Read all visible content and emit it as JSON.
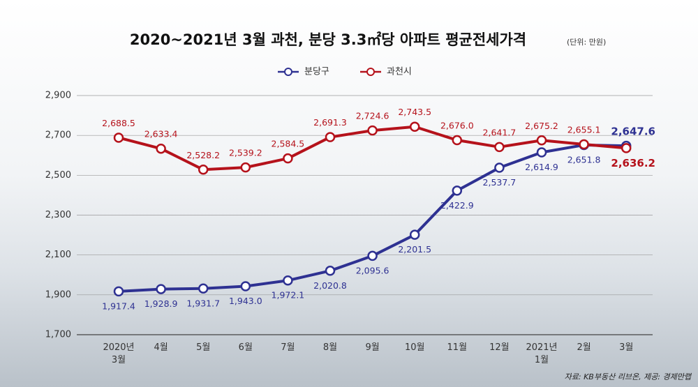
{
  "chart_data": {
    "type": "line",
    "title": "2020~2021년 3월  과천, 분당 3.3㎡당 아파트 평균전세가격",
    "unit": "(단위: 만원)",
    "source": "자료: KB부동산 리브온, 제공: 경제만랩",
    "categories": [
      "2020년\n3월",
      "4월",
      "5월",
      "6월",
      "7월",
      "8월",
      "9월",
      "10월",
      "11월",
      "12월",
      "2021년\n1월",
      "2월",
      "3월"
    ],
    "series": [
      {
        "name": "분당구",
        "color": "#2e3192",
        "values": [
          1917.4,
          1928.9,
          1931.7,
          1943.0,
          1972.1,
          2020.8,
          2095.6,
          2201.5,
          2422.9,
          2537.7,
          2614.9,
          2651.8,
          2647.6
        ],
        "value_labels": [
          "1,917.4",
          "1,928.9",
          "1,931.7",
          "1,943.0",
          "1,972.1",
          "2,020.8",
          "2,095.6",
          "2,201.5",
          "2,422.9",
          "2,537.7",
          "2,614.9",
          "2,651.8",
          "2,647.6"
        ]
      },
      {
        "name": "과천시",
        "color": "#b5121b",
        "values": [
          2688.5,
          2633.4,
          2528.2,
          2539.2,
          2584.5,
          2691.3,
          2724.6,
          2743.5,
          2676.0,
          2641.7,
          2675.2,
          2655.1,
          2636.2
        ],
        "value_labels": [
          "2,688.5",
          "2,633.4",
          "2,528.2",
          "2,539.2",
          "2,584.5",
          "2,691.3",
          "2,724.6",
          "2,743.5",
          "2,676.0",
          "2,641.7",
          "2,675.2",
          "2,655.1",
          "2,636.2"
        ]
      }
    ],
    "ylim": [
      1700,
      2900
    ],
    "yticks": [
      {
        "value": 1700,
        "label": "1,700"
      },
      {
        "value": 1900,
        "label": "1,900"
      },
      {
        "value": 2100,
        "label": "2,100"
      },
      {
        "value": 2300,
        "label": "2,300"
      },
      {
        "value": 2500,
        "label": "2,500"
      },
      {
        "value": 2700,
        "label": "2,700"
      },
      {
        "value": 2900,
        "label": "2,900"
      }
    ],
    "grid": true
  }
}
